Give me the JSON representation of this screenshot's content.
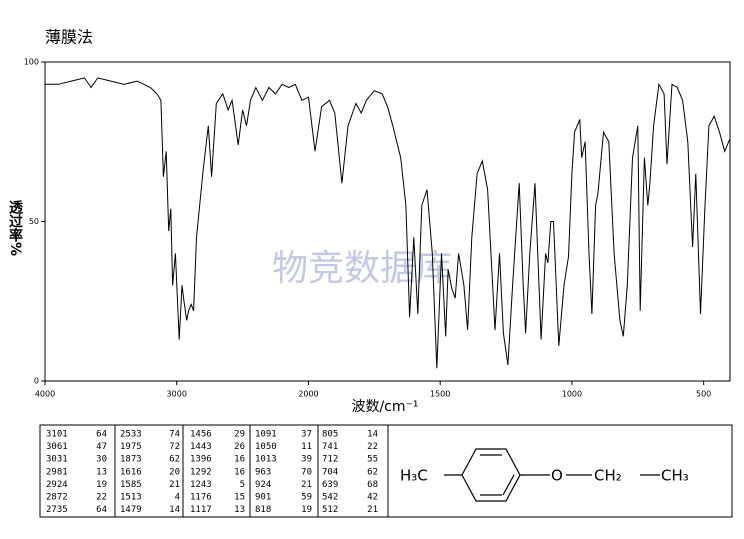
{
  "chart_data": {
    "type": "line",
    "title": "薄膜法",
    "xlabel": "波数/cm⁻¹",
    "ylabel": "透过率%",
    "watermark": "物竞数据库",
    "color": "#000000",
    "xlim": [
      4000,
      400
    ],
    "ylim": [
      0,
      100
    ],
    "xticks": [
      4000,
      3000,
      2000,
      1500,
      1000,
      500
    ],
    "yticks": [
      0,
      50,
      100
    ],
    "xscale_break": 2000,
    "xscale_factor": 2,
    "x": [
      4000,
      3900,
      3800,
      3700,
      3650,
      3600,
      3500,
      3400,
      3300,
      3200,
      3150,
      3120,
      3101,
      3080,
      3061,
      3045,
      3031,
      3010,
      2981,
      2960,
      2945,
      2924,
      2910,
      2890,
      2872,
      2850,
      2800,
      2760,
      2735,
      2700,
      2650,
      2610,
      2580,
      2533,
      2500,
      2470,
      2440,
      2400,
      2350,
      2300,
      2250,
      2200,
      2150,
      2100,
      2050,
      2000,
      1975,
      1950,
      1920,
      1900,
      1873,
      1850,
      1820,
      1800,
      1780,
      1750,
      1720,
      1700,
      1680,
      1650,
      1630,
      1616,
      1600,
      1585,
      1570,
      1550,
      1530,
      1513,
      1495,
      1479,
      1470,
      1456,
      1443,
      1430,
      1410,
      1396,
      1380,
      1360,
      1340,
      1320,
      1292,
      1275,
      1260,
      1243,
      1225,
      1200,
      1185,
      1176,
      1160,
      1140,
      1117,
      1100,
      1091,
      1080,
      1070,
      1050,
      1030,
      1013,
      1000,
      990,
      970,
      963,
      950,
      935,
      924,
      910,
      901,
      880,
      860,
      840,
      818,
      805,
      790,
      770,
      750,
      741,
      725,
      712,
      704,
      690,
      670,
      650,
      639,
      620,
      600,
      580,
      560,
      542,
      530,
      512,
      495,
      480,
      460,
      440,
      420,
      400
    ],
    "values": [
      93,
      93,
      94,
      95,
      92,
      95,
      94,
      93,
      94,
      92,
      90,
      88,
      64,
      72,
      47,
      54,
      30,
      40,
      13,
      30,
      25,
      19,
      22,
      24,
      22,
      45,
      66,
      80,
      64,
      87,
      90,
      85,
      88,
      74,
      85,
      80,
      88,
      92,
      88,
      92,
      90,
      93,
      92,
      93,
      88,
      89,
      72,
      86,
      88,
      84,
      62,
      80,
      87,
      84,
      88,
      91,
      90,
      86,
      80,
      70,
      55,
      20,
      45,
      21,
      55,
      60,
      40,
      4,
      40,
      14,
      35,
      29,
      26,
      40,
      30,
      16,
      45,
      65,
      69,
      60,
      16,
      40,
      15,
      5,
      30,
      62,
      30,
      15,
      40,
      62,
      13,
      40,
      37,
      50,
      50,
      11,
      30,
      39,
      65,
      78,
      82,
      70,
      75,
      40,
      21,
      55,
      59,
      78,
      75,
      40,
      19,
      14,
      30,
      70,
      80,
      22,
      70,
      55,
      62,
      80,
      93,
      90,
      68,
      93,
      92,
      88,
      75,
      42,
      65,
      21,
      55,
      80,
      83,
      78,
      72,
      76
    ]
  },
  "peak_table": {
    "columns": [
      [
        [
          3101,
          64
        ],
        [
          3061,
          47
        ],
        [
          3031,
          30
        ],
        [
          2981,
          13
        ],
        [
          2924,
          19
        ],
        [
          2872,
          22
        ],
        [
          2735,
          64
        ]
      ],
      [
        [
          2533,
          74
        ],
        [
          1975,
          72
        ],
        [
          1873,
          62
        ],
        [
          1616,
          20
        ],
        [
          1585,
          21
        ],
        [
          1513,
          4
        ],
        [
          1479,
          14
        ]
      ],
      [
        [
          1456,
          29
        ],
        [
          1443,
          26
        ],
        [
          1396,
          16
        ],
        [
          1292,
          16
        ],
        [
          1243,
          5
        ],
        [
          1176,
          15
        ],
        [
          1117,
          13
        ]
      ],
      [
        [
          1091,
          37
        ],
        [
          1050,
          11
        ],
        [
          1013,
          39
        ],
        [
          963,
          70
        ],
        [
          924,
          21
        ],
        [
          901,
          59
        ],
        [
          818,
          19
        ]
      ],
      [
        [
          805,
          14
        ],
        [
          741,
          22
        ],
        [
          712,
          55
        ],
        [
          704,
          62
        ],
        [
          639,
          68
        ],
        [
          542,
          42
        ],
        [
          512,
          21
        ]
      ]
    ]
  },
  "structure": {
    "labels": [
      "H₃C",
      "O",
      "CH₂",
      "CH₃"
    ]
  }
}
